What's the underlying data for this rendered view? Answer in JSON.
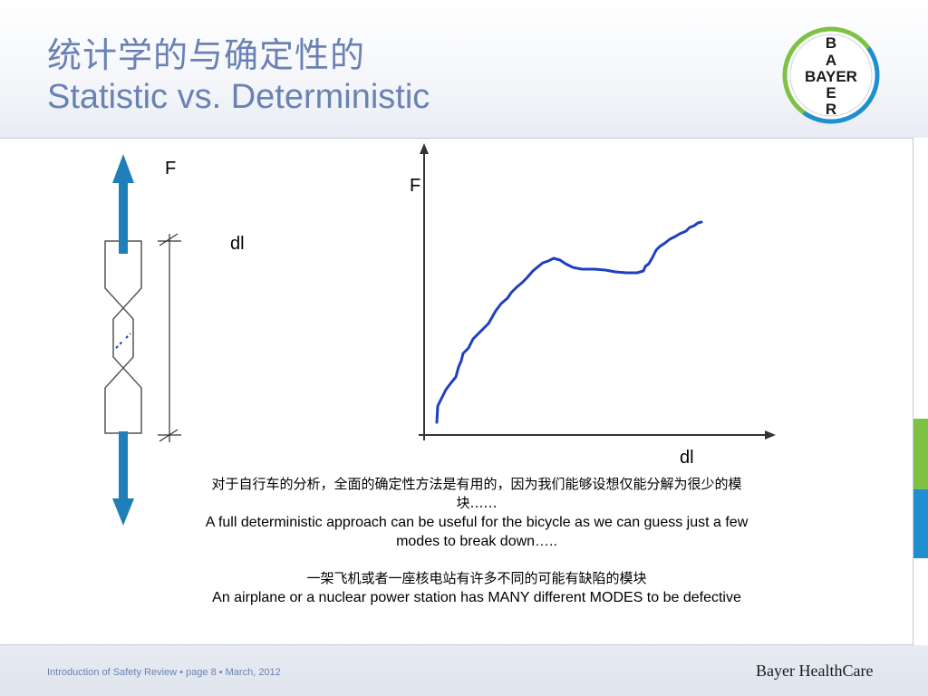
{
  "header": {
    "title_zh": "统计学的与确定性的",
    "title_en": "Statistic vs. Deterministic"
  },
  "logo": {
    "letters_top": [
      "B",
      "A"
    ],
    "word": "BAYER",
    "letters_bottom": [
      "E",
      "R"
    ],
    "ring_colors": [
      "#7dc242",
      "#1f8fd0"
    ]
  },
  "diagram": {
    "specimen_force_label": "F",
    "specimen_elongation_label": "dl",
    "plot_y_label": "F",
    "plot_x_label": "dl",
    "arrow_color": "#1f7fb8",
    "curve_color": "#1f3fbf"
  },
  "text": {
    "p1_zh": "对于自行车的分析，全面的确定性方法是有用的，因为我们能够设想仅能分解为很少的模块……",
    "p1_en": "A full deterministic approach can be useful for the bicycle as we can guess just a few modes to break down…..",
    "p2_zh": "一架飞机或者一座核电站有许多不同的可能有缺陷的模块",
    "p2_en": "An airplane or a nuclear power station has MANY different MODES to be defective"
  },
  "footer": {
    "left": "Introduction of Safety Review • page 8 • March, 2012",
    "right": "Bayer HealthCare"
  },
  "accent_colors": {
    "green": "#7dc242",
    "blue": "#1f8fd0",
    "title": "#6a82b3"
  }
}
